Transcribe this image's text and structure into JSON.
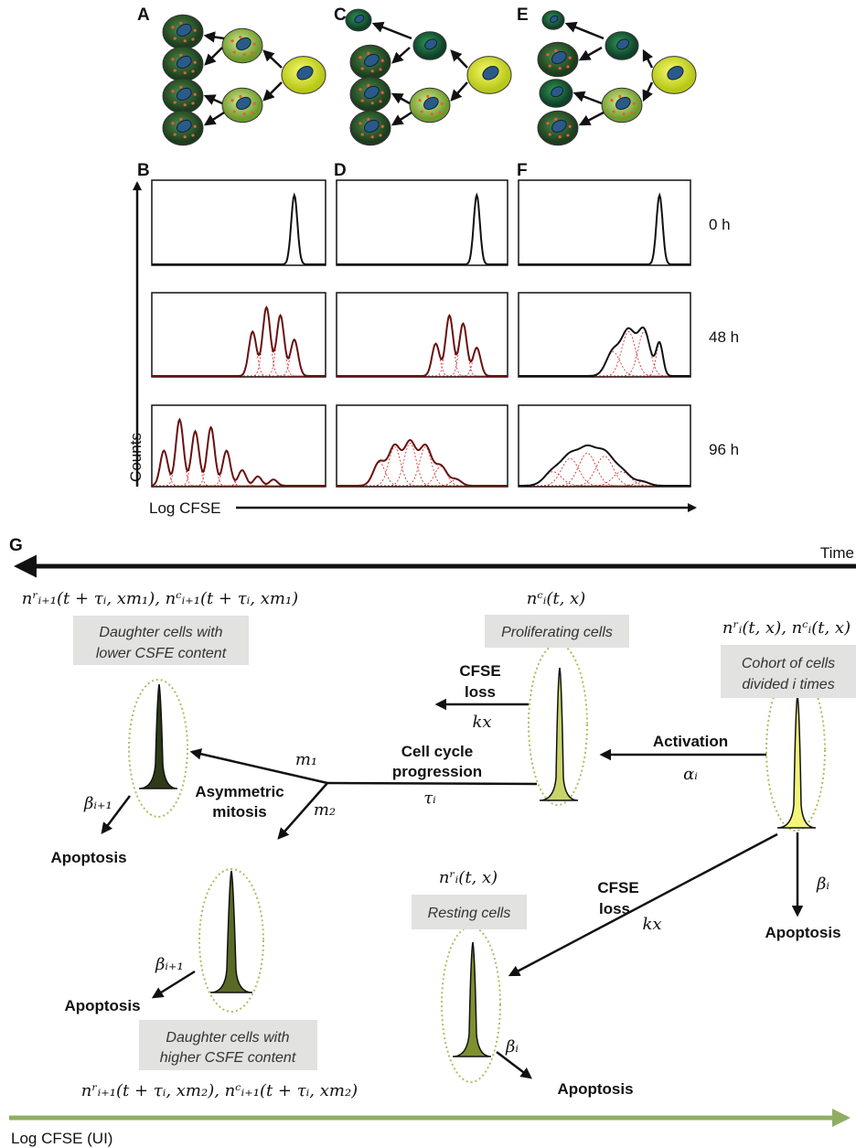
{
  "top_panels": [
    {
      "label": "A"
    },
    {
      "label": "C"
    },
    {
      "label": "E"
    }
  ],
  "histogram_panels": [
    {
      "label": "B"
    },
    {
      "label": "D"
    },
    {
      "label": "F"
    }
  ],
  "time_points": [
    "0 h",
    "48 h",
    "96 h"
  ],
  "y_axis_label": "Counts",
  "x_axis_label": "Log CFSE",
  "model": {
    "label": "G",
    "time_label": "Time",
    "x_axis_label": "Log CFSE (UI)",
    "nodes": [
      {
        "formula": "nʳᵢ(t, x), nᶜᵢ(t, x)",
        "box": [
          "Cohort of cells",
          "divided i times"
        ],
        "death_rate": "βᵢ",
        "death": "Apoptosis"
      },
      {
        "formula": "nᶜᵢ(t, x)",
        "box": [
          "Proliferating cells"
        ]
      },
      {
        "formula": "nʳᵢ(t, x)",
        "box": [
          "Resting cells"
        ],
        "death_rate": "βᵢ",
        "death": "Apoptosis"
      },
      {
        "formula": "nʳᵢ₊₁(t + τᵢ, xm₁), nᶜᵢ₊₁(t + τᵢ, xm₁)",
        "box": [
          "Daughter cells with",
          "lower CSFE content"
        ],
        "death_rate": "βᵢ₊₁",
        "death": "Apoptosis"
      },
      {
        "formula": "nʳᵢ₊₁(t + τᵢ, xm₂), nᶜᵢ₊₁(t + τᵢ, xm₂)",
        "box": [
          "Daughter cells with",
          "higher CSFE content"
        ],
        "death_rate": "βᵢ₊₁",
        "death": "Apoptosis"
      }
    ],
    "edges": [
      {
        "label": [
          "Activation"
        ],
        "rate": "αᵢ"
      },
      {
        "label": [
          "CFSE",
          "loss"
        ],
        "rate": "kx"
      },
      {
        "label": [
          "CFSE",
          "loss"
        ],
        "rate": "kx"
      },
      {
        "label": [
          "Cell cycle",
          "progression"
        ],
        "rate": "τᵢ"
      },
      {
        "label": [
          "Asymmetric",
          "mitosis"
        ],
        "rates": [
          "m₁",
          "m₂"
        ]
      }
    ]
  }
}
